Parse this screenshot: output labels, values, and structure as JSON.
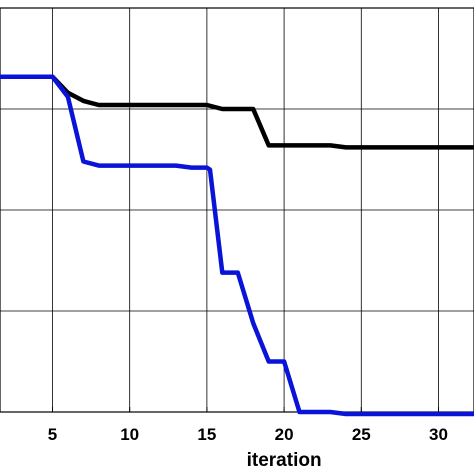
{
  "chart_data": {
    "type": "line",
    "xlabel": "iteration",
    "ylabel": "",
    "title": "",
    "xlim": [
      1.6,
      32.3
    ],
    "ylim": [
      0,
      1
    ],
    "xticks": [
      5,
      10,
      15,
      20,
      25,
      30
    ],
    "yticks": [
      0.25,
      0.5,
      0.75,
      1.0
    ],
    "grid": true,
    "series": [
      {
        "color": "#000000",
        "x": [
          1.6,
          5,
          6,
          7,
          8,
          9,
          10,
          11,
          12,
          13,
          14,
          15,
          16,
          17,
          18,
          19,
          20,
          21,
          22,
          23,
          24,
          25,
          26,
          27,
          28,
          29,
          30,
          31,
          32,
          32.3
        ],
        "y": [
          0.83,
          0.83,
          0.79,
          0.77,
          0.76,
          0.76,
          0.76,
          0.76,
          0.76,
          0.76,
          0.76,
          0.76,
          0.75,
          0.75,
          0.75,
          0.66,
          0.66,
          0.66,
          0.66,
          0.66,
          0.655,
          0.655,
          0.655,
          0.655,
          0.655,
          0.655,
          0.655,
          0.655,
          0.655,
          0.655
        ]
      },
      {
        "color": "#0a14d8",
        "x": [
          1.6,
          5,
          6,
          7,
          8,
          9,
          10,
          11,
          12,
          13,
          14,
          15,
          15.2,
          16,
          17,
          18,
          19,
          20,
          21,
          22,
          23,
          24,
          25,
          26,
          27,
          28,
          29,
          30,
          31,
          32,
          32.3
        ],
        "y": [
          0.83,
          0.83,
          0.78,
          0.62,
          0.61,
          0.61,
          0.61,
          0.61,
          0.61,
          0.61,
          0.605,
          0.605,
          0.6,
          0.345,
          0.345,
          0.22,
          0.125,
          0.125,
          0.0,
          0.0,
          0.0,
          -0.005,
          -0.005,
          -0.005,
          -0.005,
          -0.005,
          -0.005,
          -0.005,
          -0.005,
          -0.005,
          -0.005
        ]
      }
    ]
  }
}
